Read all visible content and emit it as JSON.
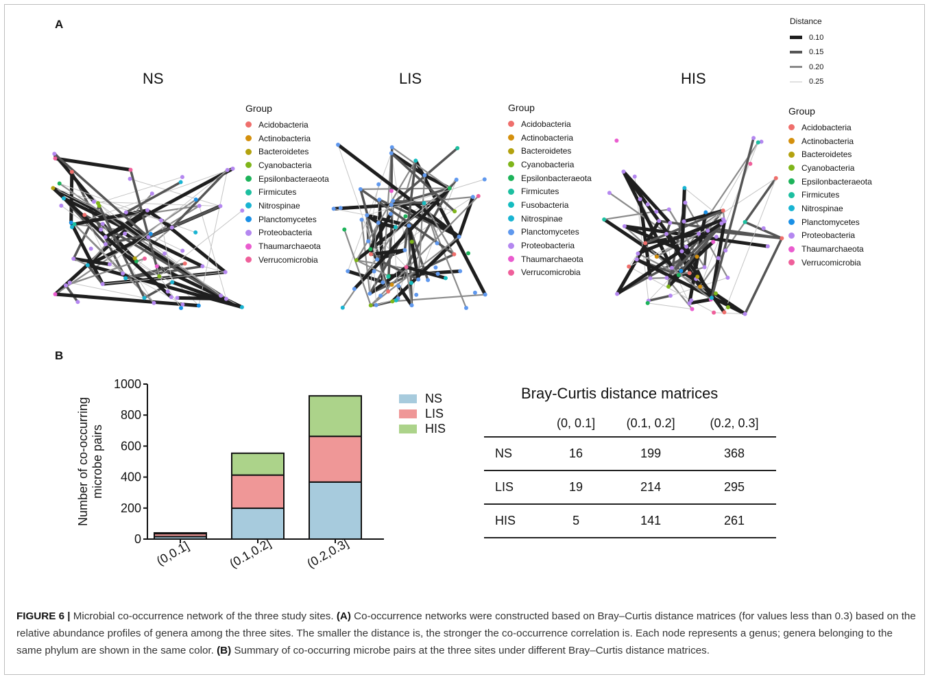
{
  "panel_a_label": "A",
  "panel_b_label": "B",
  "network_titles": [
    "NS",
    "LIS",
    "HIS"
  ],
  "distance_legend": {
    "title": "Distance",
    "entries": [
      "0.10",
      "0.15",
      "0.20",
      "0.25"
    ]
  },
  "group_legend_title": "Group",
  "group_legends": [
    {
      "items": [
        {
          "label": "Acidobacteria",
          "color": "#ef6f6c"
        },
        {
          "label": "Actinobacteria",
          "color": "#d4900d"
        },
        {
          "label": "Bacteroidetes",
          "color": "#b3a20f"
        },
        {
          "label": "Cyanobacteria",
          "color": "#7fb51a"
        },
        {
          "label": "Epsilonbacteraeota",
          "color": "#1db35a"
        },
        {
          "label": "Firmicutes",
          "color": "#1cbfa0"
        },
        {
          "label": "Nitrospinae",
          "color": "#19b4d2"
        },
        {
          "label": "Planctomycetes",
          "color": "#1a90e6"
        },
        {
          "label": "Proteobacteria",
          "color": "#b487f0"
        },
        {
          "label": "Thaumarchaeota",
          "color": "#ea5ccf"
        },
        {
          "label": "Verrucomicrobia",
          "color": "#ef5f9a"
        }
      ]
    },
    {
      "items": [
        {
          "label": "Acidobacteria",
          "color": "#ef6f6c"
        },
        {
          "label": "Actinobacteria",
          "color": "#d4900d"
        },
        {
          "label": "Bacteroidetes",
          "color": "#b3a20f"
        },
        {
          "label": "Cyanobacteria",
          "color": "#7fb51a"
        },
        {
          "label": "Epsilonbacteraeota",
          "color": "#1db35a"
        },
        {
          "label": "Firmicutes",
          "color": "#1cbfa0"
        },
        {
          "label": "Fusobacteria",
          "color": "#14bcc0"
        },
        {
          "label": "Nitrospinae",
          "color": "#19b4d2"
        },
        {
          "label": "Planctomycetes",
          "color": "#5f98ee"
        },
        {
          "label": "Proteobacteria",
          "color": "#b487f0"
        },
        {
          "label": "Thaumarchaeota",
          "color": "#ea5ccf"
        },
        {
          "label": "Verrucomicrobia",
          "color": "#ef5f9a"
        }
      ]
    },
    {
      "items": [
        {
          "label": "Acidobacteria",
          "color": "#ef6f6c"
        },
        {
          "label": "Actinobacteria",
          "color": "#d4900d"
        },
        {
          "label": "Bacteroidetes",
          "color": "#b3a20f"
        },
        {
          "label": "Cyanobacteria",
          "color": "#7fb51a"
        },
        {
          "label": "Epsilonbacteraeota",
          "color": "#1db35a"
        },
        {
          "label": "Firmicutes",
          "color": "#1cbfa0"
        },
        {
          "label": "Nitrospinae",
          "color": "#19b4d2"
        },
        {
          "label": "Planctomycetes",
          "color": "#1a90e6"
        },
        {
          "label": "Proteobacteria",
          "color": "#b487f0"
        },
        {
          "label": "Thaumarchaeota",
          "color": "#ea5ccf"
        },
        {
          "label": "Verrucomicrobia",
          "color": "#ef5f9a"
        }
      ]
    }
  ],
  "chart_data": {
    "type": "bar",
    "stacked": true,
    "categories": [
      "(0,0.1]",
      "(0.1,0.2]",
      "(0.2,0.3]"
    ],
    "series": [
      {
        "name": "NS",
        "values": [
          16,
          199,
          368
        ],
        "color": "#a7cbdd"
      },
      {
        "name": "LIS",
        "values": [
          19,
          214,
          295
        ],
        "color": "#ef9797"
      },
      {
        "name": "HIS",
        "values": [
          5,
          141,
          261
        ],
        "color": "#acd38a"
      }
    ],
    "ylabel_lines": [
      "Number of co-occurring",
      "microbe pairs"
    ],
    "ylim": [
      0,
      1000
    ],
    "yticks": [
      0,
      200,
      400,
      600,
      800,
      1000
    ],
    "legend_position": "right"
  },
  "table": {
    "title": "Bray-Curtis distance matrices",
    "columns": [
      "(0, 0.1]",
      "(0.1, 0.2]",
      "(0.2, 0.3]"
    ],
    "rows": [
      {
        "site": "NS",
        "values": [
          "16",
          "199",
          "368"
        ]
      },
      {
        "site": "LIS",
        "values": [
          "19",
          "214",
          "295"
        ]
      },
      {
        "site": "HIS",
        "values": [
          "5",
          "141",
          "261"
        ]
      }
    ]
  },
  "caption": {
    "label": "FIGURE 6 |",
    "intro": " Microbial co-occurrence network of the three study sites. ",
    "a_tag": "(A)",
    "a_text": " Co-occurrence networks were constructed based on Bray–Curtis distance matrices (for values less than 0.3) based on the relative abundance profiles of genera among the three sites. The smaller the distance is, the stronger the co-occurrence correlation is. Each node represents a genus; genera belonging to the same phylum are shown in the same color. ",
    "b_tag": "(B)",
    "b_text": " Summary of co-occurring microbe pairs at the three sites under different Bray–Curtis distance matrices."
  }
}
